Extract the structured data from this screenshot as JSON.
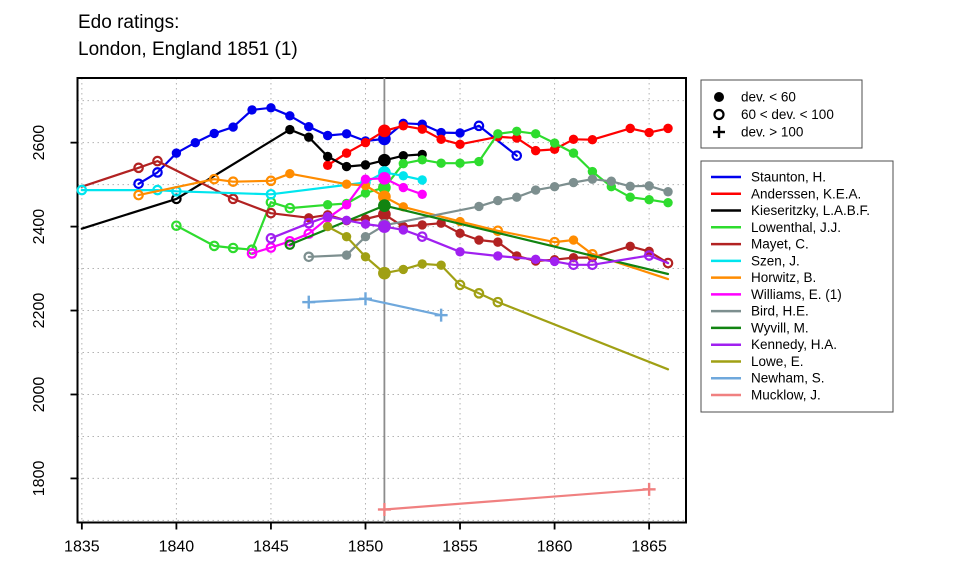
{
  "title": {
    "line1": "Edo ratings:",
    "line2": "London, England 1851 (1)"
  },
  "dev_legend": {
    "items": [
      {
        "marker": "filled-circle",
        "label": "dev. < 60"
      },
      {
        "marker": "open-circle",
        "label": "60 < dev. < 100"
      },
      {
        "marker": "plus",
        "label": "dev. > 100"
      }
    ]
  },
  "chart_data": {
    "type": "line",
    "title": "Edo ratings: London, England 1851 (1)",
    "xlabel": "",
    "ylabel": "",
    "xlim": [
      1834.77,
      1866.95
    ],
    "ylim": [
      1695,
      2754
    ],
    "x_ticks": [
      1835,
      1840,
      1845,
      1850,
      1855,
      1860,
      1865
    ],
    "y_ticks": [
      1800,
      2000,
      2200,
      2400,
      2600
    ],
    "x_grid": [
      1835,
      1840,
      1845,
      1850,
      1855,
      1860,
      1865
    ],
    "y_grid": [
      1700,
      1800,
      1900,
      2000,
      2100,
      2200,
      2300,
      2400,
      2500,
      2600,
      2700
    ],
    "grid": "dotted light gray",
    "legend_position": "right",
    "event_line_x": 1851,
    "event_line_color": "#8c8c8c",
    "marker_meaning": {
      "f": "dev. < 60 (filled circle)",
      "o": "60 < dev. < 100 (open circle)",
      "p": "dev. > 100 (plus)",
      "n": "no marker"
    },
    "series": [
      {
        "name": "Staunton, H.",
        "color": "#0000ee",
        "points": [
          [
            1838,
            2502,
            "o"
          ],
          [
            1839,
            2529,
            "o"
          ],
          [
            1840,
            2575,
            "f"
          ],
          [
            1841,
            2600,
            "f"
          ],
          [
            1842,
            2622,
            "f"
          ],
          [
            1843,
            2637,
            "f"
          ],
          [
            1844,
            2678,
            "f"
          ],
          [
            1845,
            2683,
            "f"
          ],
          [
            1846,
            2664,
            "f"
          ],
          [
            1847,
            2638,
            "f"
          ],
          [
            1848,
            2617,
            "f"
          ],
          [
            1849,
            2621,
            "f"
          ],
          [
            1850,
            2604,
            "f"
          ],
          [
            1851,
            2609,
            "f"
          ],
          [
            1852,
            2646,
            "f"
          ],
          [
            1853,
            2644,
            "f"
          ],
          [
            1854,
            2624,
            "f"
          ],
          [
            1855,
            2623,
            "f"
          ],
          [
            1856,
            2640,
            "o"
          ],
          [
            1858,
            2569,
            "o"
          ]
        ]
      },
      {
        "name": "Anderssen, K.E.A.",
        "color": "#ff0000",
        "points": [
          [
            1848,
            2546,
            "f"
          ],
          [
            1849,
            2575,
            "f"
          ],
          [
            1850,
            2600,
            "f"
          ],
          [
            1851,
            2628,
            "f"
          ],
          [
            1852,
            2640,
            "f"
          ],
          [
            1853,
            2632,
            "f"
          ],
          [
            1854,
            2608,
            "f"
          ],
          [
            1855,
            2596,
            "f"
          ],
          [
            1857,
            2614,
            "f"
          ],
          [
            1858,
            2611,
            "f"
          ],
          [
            1859,
            2581,
            "f"
          ],
          [
            1860,
            2584,
            "f"
          ],
          [
            1861,
            2608,
            "f"
          ],
          [
            1862,
            2607,
            "f"
          ],
          [
            1864,
            2634,
            "f"
          ],
          [
            1865,
            2624,
            "f"
          ],
          [
            1866,
            2634,
            "f"
          ]
        ]
      },
      {
        "name": "Kieseritzky, L.A.B.F.",
        "color": "#000000",
        "points": [
          [
            1835,
            2395,
            "n"
          ],
          [
            1840,
            2466,
            "o"
          ],
          [
            1846,
            2631,
            "f"
          ],
          [
            1847,
            2613,
            "f"
          ],
          [
            1848,
            2567,
            "f"
          ],
          [
            1849,
            2543,
            "f"
          ],
          [
            1850,
            2547,
            "f"
          ],
          [
            1851,
            2558,
            "f"
          ],
          [
            1852,
            2569,
            "f"
          ],
          [
            1853,
            2572,
            "f"
          ]
        ]
      },
      {
        "name": "Lowenthal, J.J.",
        "color": "#2edc2e",
        "points": [
          [
            1840,
            2402,
            "o"
          ],
          [
            1842,
            2354,
            "o"
          ],
          [
            1843,
            2349,
            "o"
          ],
          [
            1844,
            2345,
            "o"
          ],
          [
            1845,
            2458,
            "o"
          ],
          [
            1846,
            2444,
            "o"
          ],
          [
            1848,
            2452,
            "f"
          ],
          [
            1849,
            2455,
            "f"
          ],
          [
            1850,
            2480,
            "f"
          ],
          [
            1851,
            2493,
            "f"
          ],
          [
            1852,
            2550,
            "f"
          ],
          [
            1853,
            2559,
            "f"
          ],
          [
            1854,
            2551,
            "f"
          ],
          [
            1855,
            2551,
            "f"
          ],
          [
            1856,
            2555,
            "f"
          ],
          [
            1857,
            2621,
            "f"
          ],
          [
            1858,
            2627,
            "f"
          ],
          [
            1859,
            2621,
            "f"
          ],
          [
            1860,
            2599,
            "f"
          ],
          [
            1861,
            2575,
            "f"
          ],
          [
            1862,
            2531,
            "f"
          ],
          [
            1863,
            2495,
            "f"
          ],
          [
            1864,
            2470,
            "f"
          ],
          [
            1865,
            2464,
            "f"
          ],
          [
            1866,
            2457,
            "f"
          ]
        ]
      },
      {
        "name": "Mayet, C.",
        "color": "#b22222",
        "points": [
          [
            1835,
            2495,
            "n"
          ],
          [
            1838,
            2540,
            "o"
          ],
          [
            1839,
            2556,
            "o"
          ],
          [
            1843,
            2466,
            "o"
          ],
          [
            1845,
            2432,
            "o"
          ],
          [
            1847,
            2421,
            "f"
          ],
          [
            1848,
            2428,
            "f"
          ],
          [
            1849,
            2414,
            "f"
          ],
          [
            1850,
            2418,
            "f"
          ],
          [
            1851,
            2429,
            "f"
          ],
          [
            1852,
            2400,
            "f"
          ],
          [
            1853,
            2404,
            "f"
          ],
          [
            1854,
            2408,
            "f"
          ],
          [
            1855,
            2384,
            "f"
          ],
          [
            1856,
            2368,
            "f"
          ],
          [
            1857,
            2363,
            "f"
          ],
          [
            1858,
            2330,
            "f"
          ],
          [
            1859,
            2318,
            "f"
          ],
          [
            1860,
            2321,
            "f"
          ],
          [
            1861,
            2326,
            "f"
          ],
          [
            1862,
            2326,
            "f"
          ],
          [
            1864,
            2353,
            "f"
          ],
          [
            1865,
            2341,
            "f"
          ],
          [
            1866,
            2313,
            "o"
          ]
        ]
      },
      {
        "name": "Szen, J.",
        "color": "#00e5ee",
        "points": [
          [
            1835,
            2487,
            "o"
          ],
          [
            1839,
            2487,
            "o"
          ],
          [
            1840,
            2484,
            "o"
          ],
          [
            1845,
            2477,
            "o"
          ],
          [
            1850,
            2505,
            "o"
          ],
          [
            1851,
            2529,
            "f"
          ],
          [
            1852,
            2521,
            "f"
          ],
          [
            1853,
            2511,
            "f"
          ]
        ]
      },
      {
        "name": "Horwitz, B.",
        "color": "#ff8c00",
        "points": [
          [
            1838,
            2475,
            "o"
          ],
          [
            1842,
            2513,
            "o"
          ],
          [
            1843,
            2507,
            "o"
          ],
          [
            1845,
            2509,
            "o"
          ],
          [
            1846,
            2526,
            "f"
          ],
          [
            1849,
            2501,
            "f"
          ],
          [
            1850,
            2498,
            "f"
          ],
          [
            1851,
            2471,
            "f"
          ],
          [
            1852,
            2447,
            "f"
          ],
          [
            1855,
            2412,
            "f"
          ],
          [
            1857,
            2390,
            "o"
          ],
          [
            1860,
            2363,
            "o"
          ],
          [
            1861,
            2368,
            "f"
          ],
          [
            1862,
            2334,
            "o"
          ],
          [
            1866,
            2275,
            "n"
          ]
        ]
      },
      {
        "name": "Williams, E. (1)",
        "color": "#ff00ff",
        "points": [
          [
            1844,
            2336,
            "o"
          ],
          [
            1845,
            2350,
            "o"
          ],
          [
            1846,
            2365,
            "o"
          ],
          [
            1847,
            2383,
            "o"
          ],
          [
            1848,
            2420,
            "f"
          ],
          [
            1849,
            2452,
            "f"
          ],
          [
            1850,
            2513,
            "f"
          ],
          [
            1851,
            2515,
            "f"
          ],
          [
            1852,
            2493,
            "f"
          ],
          [
            1853,
            2477,
            "f"
          ]
        ]
      },
      {
        "name": "Bird, H.E.",
        "color": "#7d8f8f",
        "points": [
          [
            1847,
            2328,
            "o"
          ],
          [
            1849,
            2332,
            "f"
          ],
          [
            1850,
            2376,
            "f"
          ],
          [
            1851,
            2403,
            "f"
          ],
          [
            1856,
            2448,
            "f"
          ],
          [
            1857,
            2462,
            "f"
          ],
          [
            1858,
            2470,
            "f"
          ],
          [
            1859,
            2487,
            "f"
          ],
          [
            1860,
            2495,
            "f"
          ],
          [
            1861,
            2505,
            "f"
          ],
          [
            1862,
            2513,
            "f"
          ],
          [
            1863,
            2508,
            "f"
          ],
          [
            1864,
            2496,
            "f"
          ],
          [
            1865,
            2497,
            "f"
          ],
          [
            1866,
            2483,
            "f"
          ]
        ]
      },
      {
        "name": "Wyvill, M.",
        "color": "#118411",
        "points": [
          [
            1846,
            2357,
            "o"
          ],
          [
            1851,
            2450,
            "f"
          ],
          [
            1866,
            2287,
            "n"
          ]
        ]
      },
      {
        "name": "Kennedy, H.A.",
        "color": "#a020f0",
        "points": [
          [
            1845,
            2372,
            "o"
          ],
          [
            1847,
            2408,
            "o"
          ],
          [
            1848,
            2424,
            "f"
          ],
          [
            1849,
            2415,
            "f"
          ],
          [
            1850,
            2406,
            "f"
          ],
          [
            1851,
            2400,
            "f"
          ],
          [
            1852,
            2392,
            "f"
          ],
          [
            1853,
            2376,
            "o"
          ],
          [
            1855,
            2340,
            "f"
          ],
          [
            1857,
            2330,
            "f"
          ],
          [
            1859,
            2322,
            "f"
          ],
          [
            1860,
            2317,
            "f"
          ],
          [
            1861,
            2309,
            "o"
          ],
          [
            1862,
            2309,
            "o"
          ],
          [
            1865,
            2331,
            "o"
          ],
          [
            1866,
            2313,
            "n"
          ]
        ]
      },
      {
        "name": "Lowe, E.",
        "color": "#a0a014",
        "points": [
          [
            1848,
            2400,
            "f"
          ],
          [
            1849,
            2376,
            "f"
          ],
          [
            1850,
            2328,
            "f"
          ],
          [
            1851,
            2289,
            "f"
          ],
          [
            1852,
            2298,
            "f"
          ],
          [
            1853,
            2311,
            "f"
          ],
          [
            1854,
            2308,
            "f"
          ],
          [
            1855,
            2261,
            "o"
          ],
          [
            1856,
            2241,
            "o"
          ],
          [
            1857,
            2220,
            "o"
          ],
          [
            1866,
            2060,
            "n"
          ]
        ]
      },
      {
        "name": "Newham, S.",
        "color": "#6fa8dc",
        "points": [
          [
            1847,
            2220,
            "p"
          ],
          [
            1850,
            2228,
            "p"
          ],
          [
            1854,
            2189,
            "p"
          ]
        ]
      },
      {
        "name": "Mucklow, J.",
        "color": "#f08080",
        "points": [
          [
            1851,
            1726,
            "p"
          ],
          [
            1865,
            1774,
            "p"
          ]
        ]
      }
    ]
  }
}
